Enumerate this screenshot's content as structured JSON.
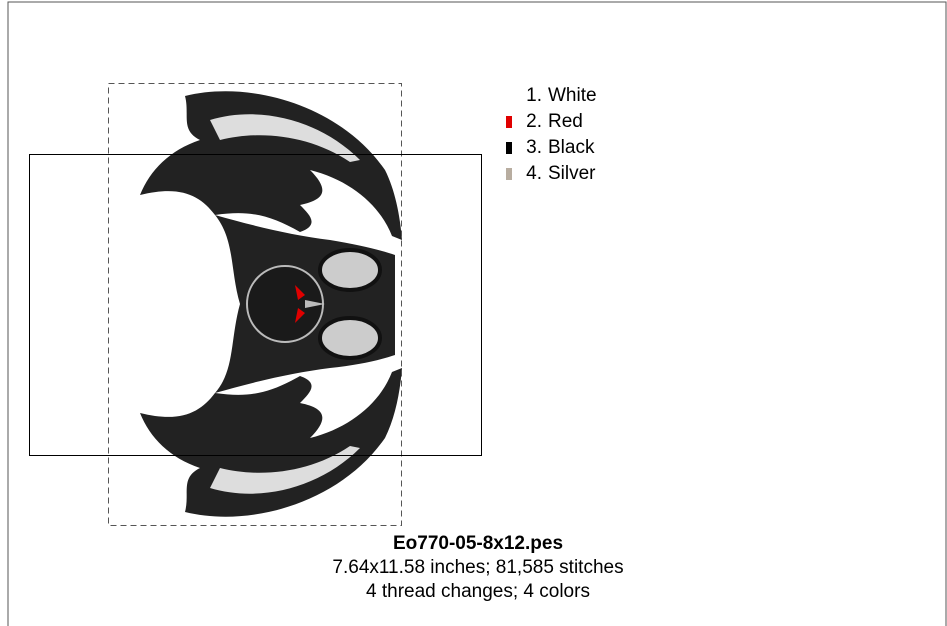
{
  "legend": {
    "items": [
      {
        "number": "1.",
        "name": "White",
        "color": "#ffffff"
      },
      {
        "number": "2.",
        "name": "Red",
        "color": "#e00000"
      },
      {
        "number": "3.",
        "name": "Black",
        "color": "#000000"
      },
      {
        "number": "4.",
        "name": "Silver",
        "color": "#b8ada0"
      }
    ]
  },
  "info": {
    "filename": "Eo770-05-8x12.pes",
    "size_line": "7.64x11.58 inches; 81,585 stitches",
    "changes_line": "4 thread changes; 4 colors"
  }
}
